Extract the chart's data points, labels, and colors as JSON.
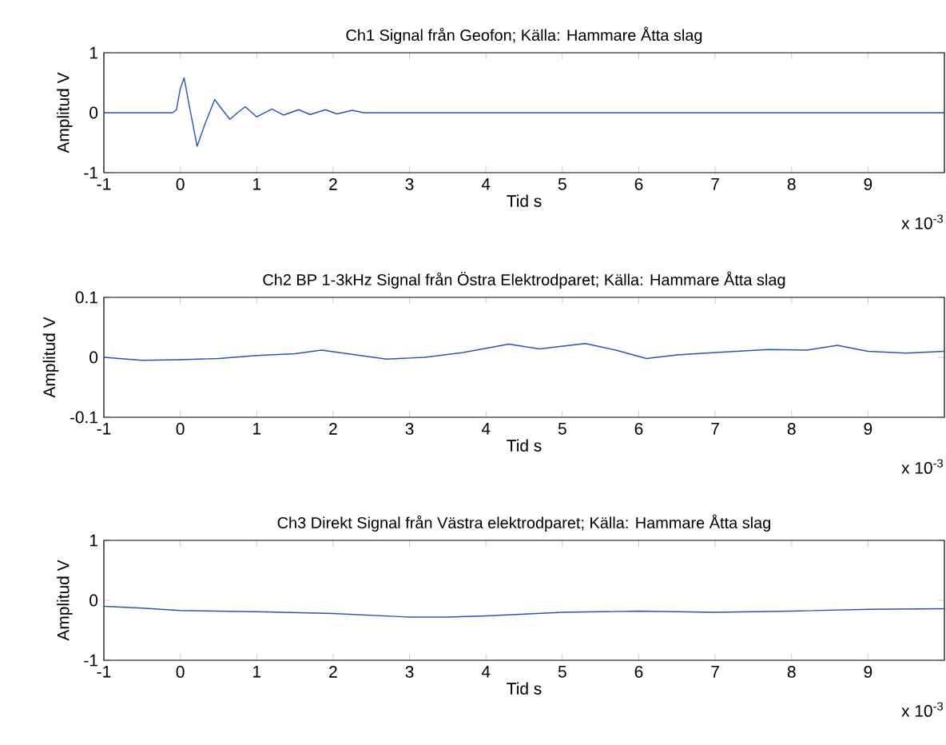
{
  "chart_data": [
    {
      "type": "line",
      "title": "Ch1 Signal från Geofon; Källa: Hammare Åtta slag",
      "xlabel": "Tid s",
      "ylabel": "Amplitud V",
      "x": [
        -1,
        -0.5,
        -0.1,
        -0.05,
        0,
        0.05,
        0.12,
        0.22,
        0.32,
        0.45,
        0.55,
        0.65,
        0.75,
        0.85,
        1.0,
        1.2,
        1.35,
        1.55,
        1.7,
        1.9,
        2.05,
        2.25,
        2.4,
        3,
        4,
        5,
        6,
        7,
        8,
        9,
        10
      ],
      "series": [
        {
          "color": "#2b4fc4",
          "values": [
            0,
            0,
            0,
            0.05,
            0.4,
            0.58,
            0.1,
            -0.56,
            -0.2,
            0.22,
            0.05,
            -0.11,
            0.0,
            0.1,
            -0.07,
            0.06,
            -0.04,
            0.05,
            -0.03,
            0.05,
            -0.02,
            0.04,
            0,
            0,
            0,
            0,
            0,
            0,
            0,
            0,
            0
          ]
        }
      ],
      "xlim": [
        -1,
        10
      ],
      "ylim": [
        -1,
        1
      ],
      "xticks": [
        -1,
        0,
        1,
        2,
        3,
        4,
        5,
        6,
        7,
        8,
        9
      ],
      "yticks": [
        -1,
        0,
        1
      ],
      "annotations": [
        "x 10$^{-3}$"
      ]
    },
    {
      "type": "line",
      "title": "Ch2 BP 1-3kHz Signal från Östra Elektrodparet; Källa: Hammare Åtta slag",
      "xlabel": "Tid s",
      "ylabel": "Amplitud V",
      "x": [
        -1,
        -0.5,
        0,
        0.5,
        1,
        1.5,
        1.85,
        2.3,
        2.7,
        3.2,
        3.7,
        4.3,
        4.7,
        5.3,
        5.7,
        6.1,
        6.5,
        7,
        7.7,
        8.2,
        8.6,
        9.0,
        9.5,
        10
      ],
      "series": [
        {
          "color": "#2b4fc4",
          "values": [
            0,
            -0.005,
            -0.004,
            -0.002,
            0.003,
            0.006,
            0.012,
            0.004,
            -0.003,
            0,
            0.008,
            0.022,
            0.014,
            0.023,
            0.012,
            -0.002,
            0.004,
            0.008,
            0.013,
            0.012,
            0.02,
            0.01,
            0.007,
            0.01
          ]
        }
      ],
      "xlim": [
        -1,
        10
      ],
      "ylim": [
        -0.1,
        0.1
      ],
      "xticks": [
        -1,
        0,
        1,
        2,
        3,
        4,
        5,
        6,
        7,
        8,
        9
      ],
      "yticks": [
        -0.1,
        0,
        0.1
      ],
      "annotations": [
        "x 10$^{-3}$"
      ]
    },
    {
      "type": "line",
      "title": "Ch3 Direkt Signal från Västra elektrodparet; Källa: Hammare Åtta slag",
      "xlabel": "Tid s",
      "ylabel": "Amplitud V",
      "x": [
        -1,
        -0.5,
        0,
        1,
        2,
        3,
        3.5,
        4,
        5,
        6,
        7,
        8,
        9,
        10
      ],
      "series": [
        {
          "color": "#2b4fc4",
          "values": [
            -0.1,
            -0.13,
            -0.17,
            -0.19,
            -0.22,
            -0.28,
            -0.28,
            -0.26,
            -0.2,
            -0.18,
            -0.2,
            -0.18,
            -0.15,
            -0.14
          ]
        }
      ],
      "xlim": [
        -1,
        10
      ],
      "ylim": [
        -1,
        1
      ],
      "xticks": [
        -1,
        0,
        1,
        2,
        3,
        4,
        5,
        6,
        7,
        8,
        9
      ],
      "yticks": [
        -1,
        0,
        1
      ],
      "annotations": [
        "x 10$^{-3}$"
      ]
    }
  ]
}
